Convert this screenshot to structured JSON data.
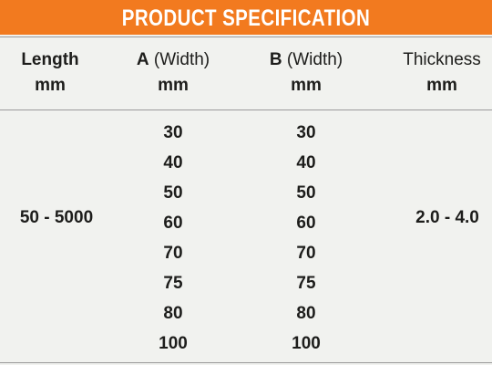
{
  "header": {
    "title": "PRODUCT SPECIFICATION"
  },
  "table": {
    "columns": [
      {
        "label": "Length",
        "unit": "mm"
      },
      {
        "letter": "A",
        "label": "(Width)",
        "unit": "mm"
      },
      {
        "letter": "B",
        "label": "(Width)",
        "unit": "mm"
      },
      {
        "label": "Thickness",
        "unit": "mm"
      }
    ],
    "length": "50 - 5000",
    "width_a": [
      30,
      40,
      50,
      60,
      70,
      75,
      80,
      100
    ],
    "width_b": [
      30,
      40,
      50,
      60,
      70,
      75,
      80,
      100
    ],
    "thickness": "2.0 - 4.0"
  }
}
